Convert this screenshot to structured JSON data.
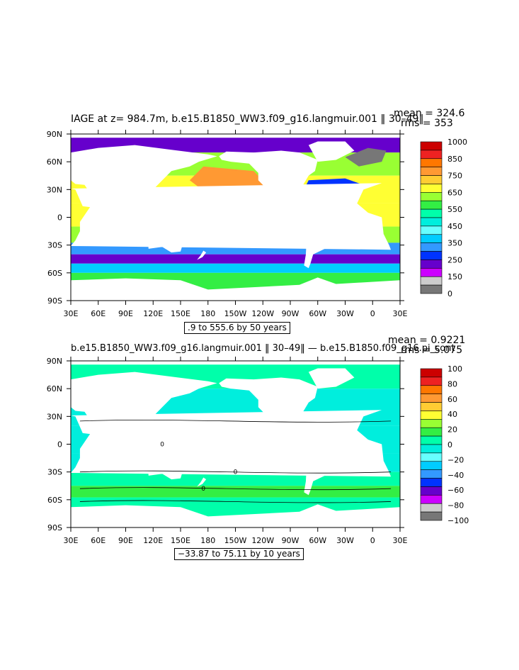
{
  "chart_data": [
    {
      "type": "heatmap",
      "title": "IAGE at z= 984.7m, b.e15.B1850_WW3.f09_g16.langmuir.001 ‖ 30–49‖",
      "mean_label": "mean = 324.6",
      "rms_label": "rms = 353",
      "range_label": ".9 to 555.6 by 50 years",
      "xticks": [
        "30E",
        "60E",
        "90E",
        "120E",
        "150E",
        "180",
        "150W",
        "120W",
        "90W",
        "60W",
        "30W",
        "0",
        "30E"
      ],
      "yticks": [
        "90N",
        "60N",
        "30N",
        "0",
        "30S",
        "60S",
        "90S"
      ],
      "xlim": [
        30,
        390
      ],
      "ylim": [
        -90,
        90
      ],
      "colorbar": {
        "labels": [
          "1000",
          "850",
          "750",
          "650",
          "550",
          "450",
          "350",
          "250",
          "150",
          "0"
        ],
        "colors": [
          "#cc0000",
          "#ee2222",
          "#ff7700",
          "#ff9933",
          "#ffcc33",
          "#ffff33",
          "#99ff33",
          "#33ee44",
          "#00ffaa",
          "#00eedd",
          "#66ffff",
          "#00ccff",
          "#3399ff",
          "#0033ff",
          "#6600cc",
          "#cc00ff",
          "#cccccc",
          "#777777"
        ]
      },
      "field": {
        "bands": [
          {
            "lat": 80,
            "value": 150
          },
          {
            "lat": 60,
            "value": 450
          },
          {
            "lat": 30,
            "value": 480
          },
          {
            "lat": 0,
            "value": 470
          },
          {
            "lat": -20,
            "value": 440
          },
          {
            "lat": -35,
            "value": 220
          },
          {
            "lat": -45,
            "value": 120
          },
          {
            "lat": -55,
            "value": 250
          },
          {
            "lat": -65,
            "value": 420
          }
        ],
        "north_pacific_value": 550,
        "north_atlantic_value": 180,
        "nordic_value": 0
      }
    },
    {
      "type": "heatmap",
      "title": "b.e15.B1850_WW3.f09_g16.langmuir.001 ‖ 30–49‖ — b.e15.B1850.f09_g16.pi_cont",
      "mean_label": "mean = 0.9221",
      "rms_label": "rms = 5.075",
      "range_label": "−33.87 to 75.11 by 10 years",
      "xticks": [
        "30E",
        "60E",
        "90E",
        "120E",
        "150E",
        "180",
        "150W",
        "120W",
        "90W",
        "60W",
        "30W",
        "0",
        "30E"
      ],
      "yticks": [
        "90N",
        "60N",
        "30N",
        "0",
        "30S",
        "60S",
        "90S"
      ],
      "xlim": [
        30,
        390
      ],
      "ylim": [
        -90,
        90
      ],
      "contour_label": "0",
      "colorbar": {
        "labels": [
          "100",
          "80",
          "60",
          "40",
          "20",
          "0",
          "−20",
          "−40",
          "−60",
          "−80",
          "−100"
        ],
        "colors": [
          "#cc0000",
          "#ee2222",
          "#ff7700",
          "#ff9933",
          "#ffcc33",
          "#ffff33",
          "#99ff33",
          "#33ee44",
          "#00ffaa",
          "#00eedd",
          "#66ffff",
          "#00ccff",
          "#3399ff",
          "#0033ff",
          "#6600cc",
          "#cc00ff",
          "#cccccc",
          "#777777"
        ]
      },
      "field": {
        "bands": [
          {
            "lat": 80,
            "value": 5
          },
          {
            "lat": 40,
            "value": -5
          },
          {
            "lat": 0,
            "value": -5
          },
          {
            "lat": -20,
            "value": -5
          },
          {
            "lat": -40,
            "value": 5
          },
          {
            "lat": -50,
            "value": 15
          },
          {
            "lat": -65,
            "value": 5
          }
        ]
      }
    }
  ]
}
